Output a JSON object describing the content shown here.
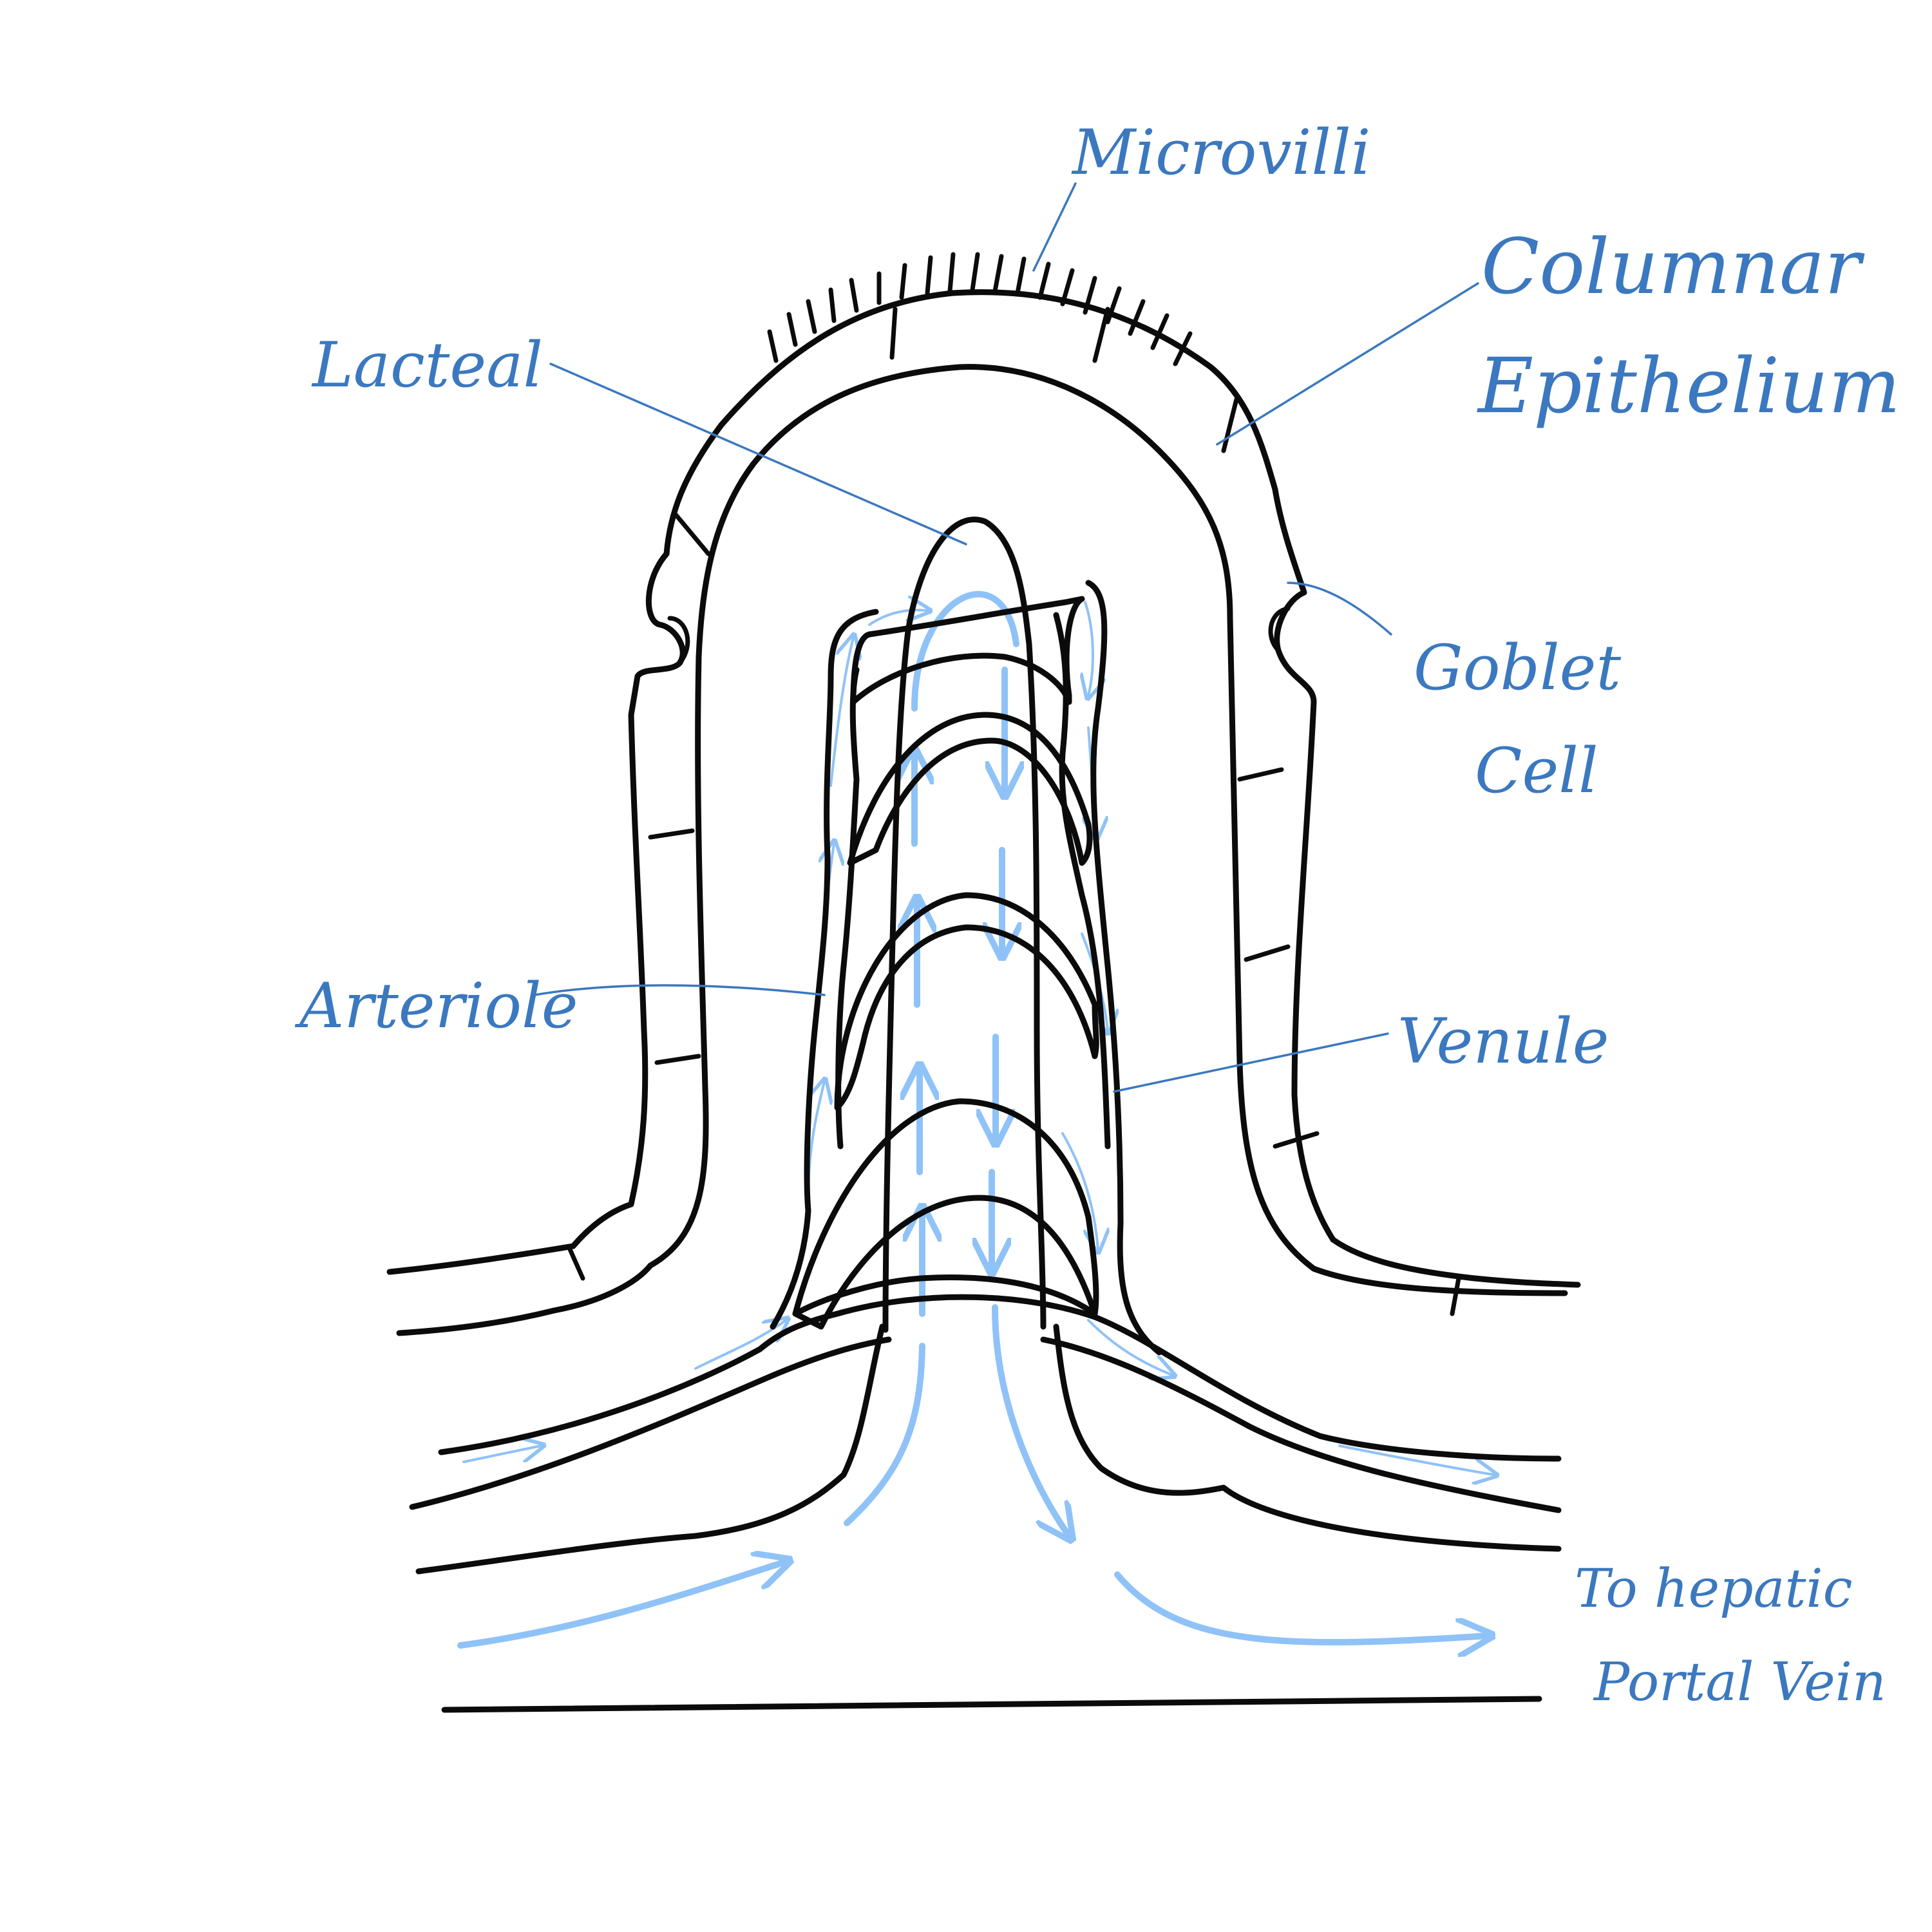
{
  "colors": {
    "outline": "#0b0b0b",
    "flow": "#8fc2f7",
    "label": "#3b78bf"
  },
  "labels": {
    "microvilli": "Microvilli",
    "columnar_line1": "Columnar",
    "columnar_line2": "Epithelium",
    "lacteal": "Lacteal",
    "goblet_line1": "Goblet",
    "goblet_line2": "Cell",
    "arteriole": "Arteriole",
    "venule": "Venule",
    "portal_line1": "To hepatic",
    "portal_line2": "Portal Vein"
  }
}
